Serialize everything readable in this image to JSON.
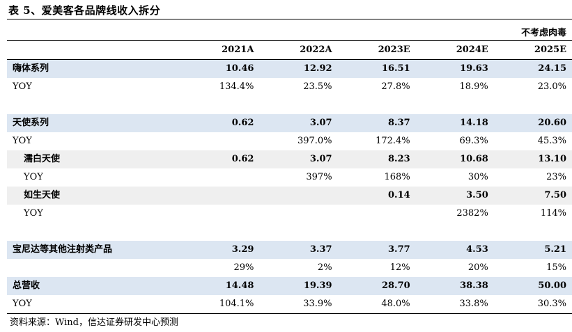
{
  "title": "表 5、爱美客各品牌线收入拆分",
  "unit": "不考虑肉毒",
  "columns": [
    "",
    "2021A",
    "2022A",
    "2023E",
    "2024E",
    "2025E"
  ],
  "rows": [
    {
      "type": "hl",
      "label": "嗨体系列",
      "values": [
        "10.46",
        "12.92",
        "16.51",
        "19.63",
        "24.15"
      ]
    },
    {
      "type": "yoy",
      "label": "YOY",
      "values": [
        "134.4%",
        "23.5%",
        "27.8%",
        "18.9%",
        "23.0%"
      ]
    },
    {
      "type": "gap"
    },
    {
      "type": "hl",
      "label": "天使系列",
      "values": [
        "0.62",
        "3.07",
        "8.37",
        "14.18",
        "20.60"
      ]
    },
    {
      "type": "yoy",
      "label": "YOY",
      "values": [
        "",
        "397.0%",
        "172.4%",
        "69.3%",
        "45.3%"
      ]
    },
    {
      "type": "sub",
      "label": "濡白天使",
      "values": [
        "0.62",
        "3.07",
        "8.23",
        "10.68",
        "13.10"
      ]
    },
    {
      "type": "subyoy",
      "label": "YOY",
      "values": [
        "",
        "397%",
        "168%",
        "30%",
        "23%"
      ]
    },
    {
      "type": "sub",
      "label": "如生天使",
      "values": [
        "",
        "",
        "0.14",
        "3.50",
        "7.50"
      ]
    },
    {
      "type": "subyoy2",
      "label": "YOY",
      "values": [
        "",
        "",
        "",
        "2382%",
        "114%"
      ]
    },
    {
      "type": "gap"
    },
    {
      "type": "hl",
      "label": "宝尼达等其他注射类产品",
      "values": [
        "3.29",
        "3.37",
        "3.77",
        "4.53",
        "5.21"
      ]
    },
    {
      "type": "yoy",
      "label": "",
      "values": [
        "29%",
        "2%",
        "12%",
        "20%",
        "15%"
      ]
    },
    {
      "type": "hl",
      "label": "总营收",
      "values": [
        "14.48",
        "19.39",
        "28.70",
        "38.38",
        "50.00"
      ]
    },
    {
      "type": "yoy",
      "label": "YOY",
      "values": [
        "104.1%",
        "33.9%",
        "48.0%",
        "33.8%",
        "30.3%"
      ],
      "last": true
    }
  ],
  "source": "资料来源：Wind，信达证券研发中心预测"
}
